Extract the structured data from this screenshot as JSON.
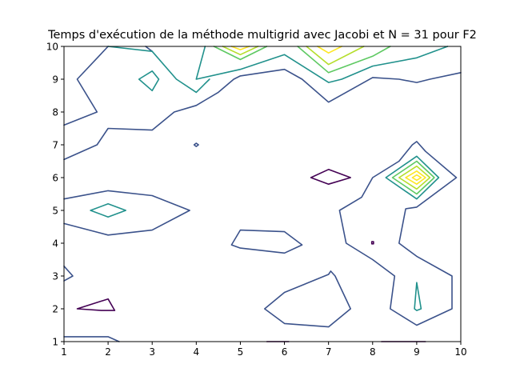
{
  "chart_data": {
    "type": "contour",
    "title": "Temps d'exécution de la méthode multigrid avec Jacobi et N = 31 pour F2",
    "xlabel": "",
    "ylabel": "",
    "xlim": [
      1,
      10
    ],
    "ylim": [
      1,
      10
    ],
    "x_ticks": [
      "1",
      "2",
      "3",
      "4",
      "5",
      "6",
      "7",
      "8",
      "9",
      "10"
    ],
    "y_ticks": [
      "1",
      "2",
      "3",
      "4",
      "5",
      "6",
      "7",
      "8",
      "9",
      "10"
    ],
    "grid": false,
    "legend": "none",
    "level_colors": [
      "#440154",
      "#3b528b",
      "#21918c",
      "#5ec962",
      "#b5de2b",
      "#fde725"
    ],
    "contours": [
      {
        "level": 0,
        "closed": false,
        "points": [
          [
            5.6,
            1.0
          ],
          [
            6.1,
            1.0
          ]
        ]
      },
      {
        "level": 0,
        "closed": false,
        "points": [
          [
            8.2,
            1.0
          ],
          [
            9.2,
            1.0
          ]
        ]
      },
      {
        "level": 0,
        "closed": true,
        "points": [
          [
            1.3,
            2.0
          ],
          [
            2.0,
            2.3
          ],
          [
            2.15,
            1.95
          ],
          [
            1.85,
            1.95
          ]
        ]
      },
      {
        "level": 0,
        "closed": true,
        "points": [
          [
            6.6,
            6.0
          ],
          [
            7.0,
            6.25
          ],
          [
            7.5,
            6.0
          ],
          [
            7.0,
            5.8
          ]
        ]
      },
      {
        "level": 0,
        "closed": true,
        "points": [
          [
            7.98,
            4.05
          ],
          [
            8.02,
            4.05
          ],
          [
            8.02,
            3.98
          ],
          [
            7.98,
            3.98
          ]
        ]
      },
      {
        "level": 1,
        "closed": false,
        "points": [
          [
            1.0,
            1.15
          ],
          [
            2.0,
            1.15
          ],
          [
            2.25,
            1.0
          ]
        ]
      },
      {
        "level": 1,
        "closed": false,
        "points": [
          [
            1.0,
            3.3
          ],
          [
            1.2,
            3.0
          ],
          [
            1.0,
            2.85
          ]
        ]
      },
      {
        "level": 1,
        "closed": false,
        "points": [
          [
            1.0,
            4.6
          ],
          [
            2.0,
            4.25
          ],
          [
            3.0,
            4.4
          ],
          [
            3.85,
            5.0
          ],
          [
            3.0,
            5.45
          ],
          [
            2.0,
            5.6
          ],
          [
            1.0,
            5.35
          ]
        ]
      },
      {
        "level": 1,
        "closed": false,
        "points": [
          [
            1.0,
            6.55
          ],
          [
            1.75,
            7.0
          ],
          [
            2.0,
            7.5
          ],
          [
            3.0,
            7.45
          ],
          [
            3.5,
            8.0
          ],
          [
            4.0,
            8.2
          ],
          [
            4.5,
            8.6
          ],
          [
            4.85,
            9.0
          ],
          [
            5.0,
            9.1
          ],
          [
            6.0,
            9.3
          ],
          [
            6.4,
            9.0
          ],
          [
            7.0,
            8.3
          ],
          [
            7.4,
            8.6
          ],
          [
            8.0,
            9.05
          ],
          [
            8.6,
            9.0
          ],
          [
            9.0,
            8.9
          ],
          [
            9.3,
            9.0
          ],
          [
            10.0,
            9.2
          ]
        ]
      },
      {
        "level": 1,
        "closed": false,
        "points": [
          [
            1.0,
            7.6
          ],
          [
            1.75,
            8.0
          ],
          [
            1.3,
            9.0
          ],
          [
            2.0,
            10.0
          ]
        ]
      },
      {
        "level": 1,
        "closed": false,
        "points": [
          [
            2.85,
            10.0
          ],
          [
            3.0,
            9.85
          ],
          [
            3.0,
            9.85
          ]
        ]
      },
      {
        "level": 1,
        "closed": true,
        "points": [
          [
            3.95,
            7.0
          ],
          [
            4.0,
            7.05
          ],
          [
            4.05,
            7.0
          ],
          [
            4.0,
            6.95
          ]
        ]
      },
      {
        "level": 1,
        "closed": true,
        "points": [
          [
            4.8,
            3.95
          ],
          [
            5.0,
            4.4
          ],
          [
            6.0,
            4.35
          ],
          [
            6.4,
            3.95
          ],
          [
            6.0,
            3.7
          ],
          [
            5.0,
            3.85
          ]
        ]
      },
      {
        "level": 1,
        "closed": true,
        "points": [
          [
            5.55,
            2.0
          ],
          [
            6.0,
            2.5
          ],
          [
            7.0,
            3.05
          ],
          [
            7.05,
            3.15
          ],
          [
            7.15,
            3.0
          ],
          [
            7.5,
            2.0
          ],
          [
            7.0,
            1.45
          ],
          [
            6.0,
            1.55
          ]
        ]
      },
      {
        "level": 1,
        "closed": false,
        "points": [
          [
            9.0,
            1.5
          ],
          [
            8.4,
            2.0
          ],
          [
            8.5,
            3.0
          ],
          [
            8.0,
            3.5
          ],
          [
            7.4,
            4.0
          ],
          [
            7.25,
            5.0
          ],
          [
            7.75,
            5.4
          ],
          [
            8.0,
            6.0
          ],
          [
            8.6,
            6.5
          ],
          [
            8.9,
            7.0
          ],
          [
            9.0,
            7.1
          ],
          [
            9.2,
            6.8
          ],
          [
            9.9,
            6.0
          ],
          [
            9.0,
            5.1
          ],
          [
            8.75,
            5.05
          ],
          [
            8.6,
            4.0
          ],
          [
            9.0,
            3.6
          ],
          [
            9.8,
            3.0
          ],
          [
            9.8,
            2.0
          ],
          [
            9.0,
            1.5
          ]
        ]
      },
      {
        "level": 2,
        "closed": true,
        "points": [
          [
            1.6,
            5.0
          ],
          [
            2.0,
            5.2
          ],
          [
            2.4,
            5.0
          ],
          [
            2.0,
            4.8
          ]
        ]
      },
      {
        "level": 2,
        "closed": true,
        "points": [
          [
            2.7,
            9.0
          ],
          [
            3.0,
            9.25
          ],
          [
            3.15,
            9.0
          ],
          [
            3.0,
            8.65
          ]
        ]
      },
      {
        "level": 2,
        "closed": false,
        "points": [
          [
            2.0,
            10.0
          ],
          [
            3.0,
            9.85
          ],
          [
            3.55,
            9.0
          ],
          [
            4.0,
            8.6
          ],
          [
            4.3,
            9.0
          ]
        ]
      },
      {
        "level": 2,
        "closed": false,
        "points": [
          [
            4.2,
            10.0
          ],
          [
            4.0,
            9.0
          ],
          [
            5.0,
            9.3
          ],
          [
            6.0,
            9.75
          ],
          [
            7.0,
            8.9
          ],
          [
            7.3,
            9.0
          ],
          [
            8.0,
            9.4
          ],
          [
            9.0,
            9.65
          ],
          [
            9.7,
            10.0
          ]
        ]
      },
      {
        "level": 2,
        "closed": true,
        "points": [
          [
            8.3,
            6.0
          ],
          [
            9.0,
            6.65
          ],
          [
            9.5,
            6.0
          ],
          [
            9.0,
            5.35
          ]
        ]
      },
      {
        "level": 2,
        "closed": true,
        "points": [
          [
            8.95,
            2.0
          ],
          [
            9.0,
            2.8
          ],
          [
            9.1,
            2.0
          ],
          [
            9.0,
            1.95
          ]
        ]
      },
      {
        "level": 3,
        "closed": false,
        "points": [
          [
            4.4,
            10.0
          ],
          [
            5.0,
            9.6
          ],
          [
            5.6,
            10.0
          ]
        ]
      },
      {
        "level": 3,
        "closed": false,
        "points": [
          [
            6.3,
            10.0
          ],
          [
            7.0,
            9.2
          ],
          [
            8.0,
            9.7
          ],
          [
            8.4,
            10.0
          ]
        ]
      },
      {
        "level": 3,
        "closed": true,
        "points": [
          [
            8.45,
            6.0
          ],
          [
            9.0,
            6.5
          ],
          [
            9.4,
            6.0
          ],
          [
            9.0,
            5.5
          ]
        ]
      },
      {
        "level": 4,
        "closed": false,
        "points": [
          [
            4.6,
            10.0
          ],
          [
            5.0,
            9.75
          ],
          [
            5.4,
            10.0
          ]
        ]
      },
      {
        "level": 4,
        "closed": false,
        "points": [
          [
            6.5,
            10.0
          ],
          [
            7.0,
            9.45
          ],
          [
            7.8,
            10.0
          ]
        ]
      },
      {
        "level": 4,
        "closed": true,
        "points": [
          [
            8.6,
            6.0
          ],
          [
            9.0,
            6.35
          ],
          [
            9.3,
            6.0
          ],
          [
            9.0,
            5.65
          ]
        ]
      },
      {
        "level": 5,
        "closed": false,
        "points": [
          [
            4.8,
            10.0
          ],
          [
            5.0,
            9.9
          ],
          [
            5.2,
            10.0
          ]
        ]
      },
      {
        "level": 5,
        "closed": false,
        "points": [
          [
            6.75,
            10.0
          ],
          [
            7.0,
            9.8
          ],
          [
            7.3,
            10.0
          ]
        ]
      },
      {
        "level": 5,
        "closed": true,
        "points": [
          [
            8.75,
            6.0
          ],
          [
            9.0,
            6.2
          ],
          [
            9.2,
            6.0
          ],
          [
            9.0,
            5.8
          ]
        ]
      },
      {
        "level": 5,
        "closed": true,
        "points": [
          [
            8.9,
            6.0
          ],
          [
            9.0,
            6.08
          ],
          [
            9.1,
            6.0
          ],
          [
            9.0,
            5.92
          ]
        ]
      }
    ]
  }
}
